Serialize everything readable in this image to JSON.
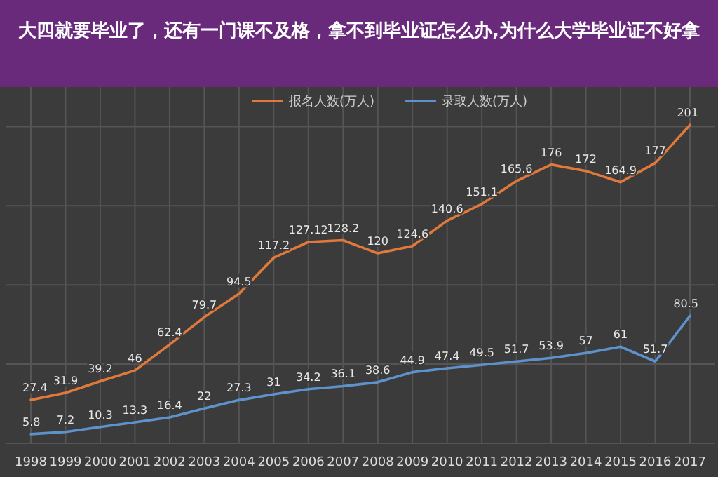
{
  "chart_data": {
    "type": "line",
    "title": "大四就要毕业了，还有一门课不及格，拿不到毕业证怎么办,为什么大学毕业证不好拿",
    "categories": [
      "1998",
      "1999",
      "2000",
      "2001",
      "2002",
      "2003",
      "2004",
      "2005",
      "2006",
      "2007",
      "2008",
      "2009",
      "2010",
      "2011",
      "2012",
      "2013",
      "2014",
      "2015",
      "2016",
      "2017"
    ],
    "series": [
      {
        "name": "报名人数(万人)",
        "color": "#e0793a",
        "values": [
          27.4,
          31.9,
          39.2,
          46,
          62.4,
          79.7,
          94.5,
          117.2,
          127.12,
          128.2,
          120,
          124.6,
          140.6,
          151.1,
          165.6,
          176,
          172,
          164.9,
          177,
          201
        ]
      },
      {
        "name": "录取人数(万人)",
        "color": "#5e92cc",
        "values": [
          5.8,
          7.2,
          10.3,
          13.3,
          16.4,
          22,
          27.3,
          31,
          34.2,
          36.1,
          38.6,
          44.9,
          47.4,
          49.5,
          51.7,
          53.9,
          57,
          61,
          51.7,
          80.5
        ]
      }
    ],
    "ylim": [
      0,
      225
    ],
    "yticks": [
      {
        "value": 0,
        "label": null
      },
      {
        "value": 50,
        "label": null
      },
      {
        "value": 100,
        "label": null
      },
      {
        "value": 150,
        "label": null
      },
      {
        "value": 200,
        "label": null
      }
    ],
    "tick_labels": "x",
    "grid": true,
    "legend": "top",
    "data_labels": true,
    "marker": "none",
    "line_style": "solid"
  }
}
